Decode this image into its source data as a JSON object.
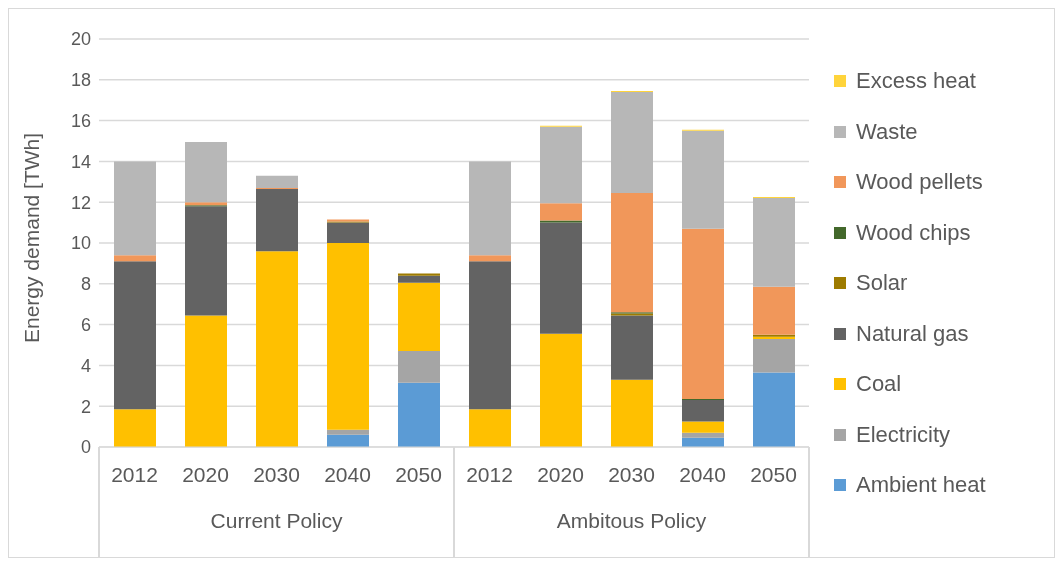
{
  "chart_data": {
    "type": "bar",
    "stacked": true,
    "ylabel": "Energy demand [TWh]",
    "categories": [
      "2012",
      "2020",
      "2030",
      "2040",
      "2050",
      "2012",
      "2020",
      "2030",
      "2040",
      "2050"
    ],
    "annotations": [
      "Current Policy",
      "Ambitous Policy"
    ],
    "series": [
      {
        "name": "Ambient heat",
        "color": "#5b9bd5",
        "values": [
          0,
          0,
          0,
          0.6,
          3.15,
          0,
          0,
          0,
          0.45,
          3.65
        ]
      },
      {
        "name": "Electricity",
        "color": "#a5a5a5",
        "values": [
          0,
          0,
          0,
          0.25,
          1.55,
          0,
          0,
          0,
          0.25,
          1.65
        ]
      },
      {
        "name": "Coal",
        "color": "#ffc000",
        "values": [
          1.85,
          6.45,
          9.6,
          9.15,
          3.35,
          1.85,
          5.55,
          3.3,
          0.55,
          0.1
        ]
      },
      {
        "name": "Natural gas",
        "color": "#636363",
        "values": [
          7.25,
          5.35,
          3.05,
          1.0,
          0.35,
          7.25,
          5.45,
          3.15,
          1.05,
          0
        ]
      },
      {
        "name": "Solar",
        "color": "#9e7b00",
        "values": [
          0,
          0,
          0,
          0.05,
          0.1,
          0,
          0,
          0.1,
          0,
          0.1
        ]
      },
      {
        "name": "Wood chips",
        "color": "#43682b",
        "values": [
          0,
          0.05,
          0,
          0,
          0,
          0,
          0.1,
          0.05,
          0.05,
          0
        ]
      },
      {
        "name": "Wood pellets",
        "color": "#f1975a",
        "values": [
          0.3,
          0.15,
          0.05,
          0.1,
          0,
          0.3,
          0.85,
          5.85,
          8.35,
          2.35
        ]
      },
      {
        "name": "Waste",
        "color": "#b7b7b7",
        "values": [
          4.6,
          2.95,
          0.6,
          0,
          0,
          4.6,
          3.75,
          4.95,
          4.8,
          4.35
        ]
      },
      {
        "name": "Excess heat",
        "color": "#ffd43b",
        "values": [
          0,
          0,
          0,
          0,
          0,
          0,
          0.05,
          0.05,
          0.05,
          0.05
        ]
      }
    ],
    "ylim": [
      0,
      20
    ],
    "yticks": [
      0,
      2,
      4,
      6,
      8,
      10,
      12,
      14,
      16,
      18,
      20
    ],
    "grid": "y",
    "legend": "right"
  }
}
